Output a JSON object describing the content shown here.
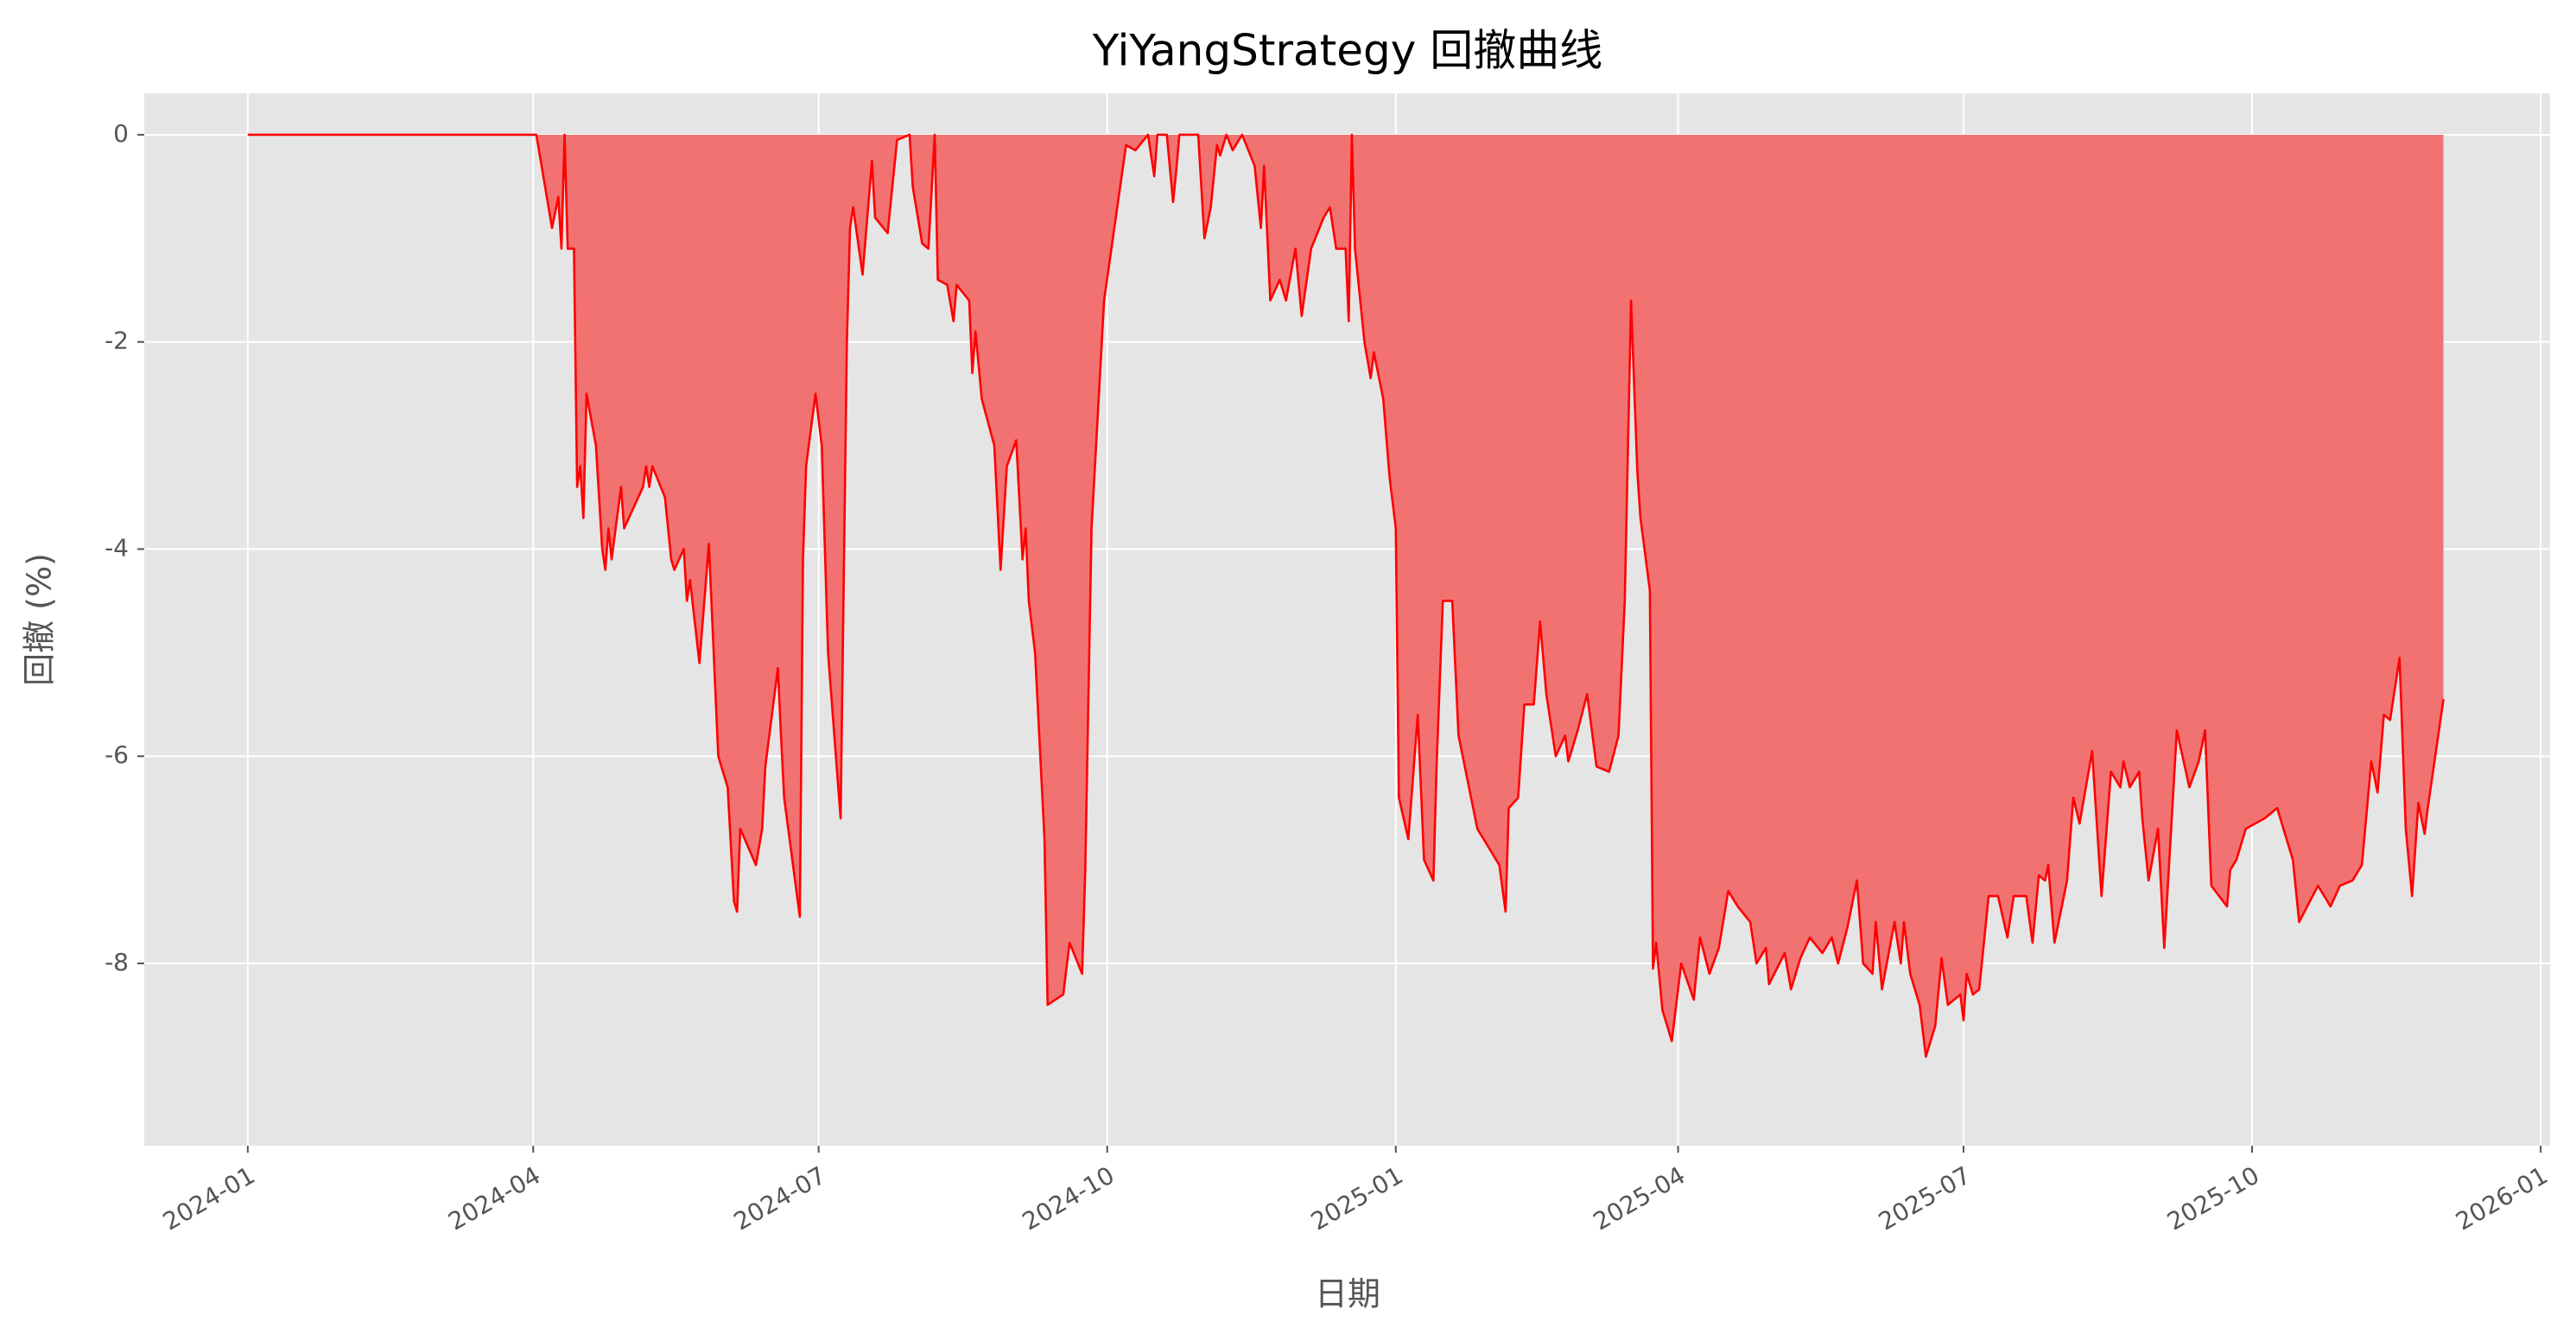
{
  "chart_data": {
    "type": "area",
    "title": "YiYangStrategy 回撤曲线",
    "x_label": "日期",
    "y_label": "回撤 (%)",
    "color": "#ff0000",
    "fill_color": "#f27272",
    "grid": true,
    "xlim": [
      "2023-11-29",
      "2026-01-04"
    ],
    "xticks": [
      {
        "value": "2024-01-01",
        "label": "2024-01"
      },
      {
        "value": "2024-04-01",
        "label": "2024-04"
      },
      {
        "value": "2024-07-01",
        "label": "2024-07"
      },
      {
        "value": "2024-10-01",
        "label": "2024-10"
      },
      {
        "value": "2025-01-01",
        "label": "2025-01"
      },
      {
        "value": "2025-04-01",
        "label": "2025-04"
      },
      {
        "value": "2025-07-01",
        "label": "2025-07"
      },
      {
        "value": "2025-10-01",
        "label": "2025-10"
      },
      {
        "value": "2026-01-01",
        "label": "2026-01"
      }
    ],
    "ylim": [
      -9.76,
      0.4
    ],
    "yticks": [
      0,
      -2,
      -4,
      -6,
      -8
    ],
    "x": [
      "2024-01-01",
      "2024-04-02",
      "2024-04-07",
      "2024-04-09",
      "2024-04-10",
      "2024-04-11",
      "2024-04-12",
      "2024-04-14",
      "2024-04-15",
      "2024-04-16",
      "2024-04-17",
      "2024-04-18",
      "2024-04-21",
      "2024-04-23",
      "2024-04-24",
      "2024-04-25",
      "2024-04-26",
      "2024-04-29",
      "2024-04-30",
      "2024-05-06",
      "2024-05-07",
      "2024-05-08",
      "2024-05-09",
      "2024-05-13",
      "2024-05-15",
      "2024-05-16",
      "2024-05-19",
      "2024-05-20",
      "2024-05-21",
      "2024-05-24",
      "2024-05-27",
      "2024-05-30",
      "2024-06-02",
      "2024-06-04",
      "2024-06-05",
      "2024-06-06",
      "2024-06-11",
      "2024-06-13",
      "2024-06-14",
      "2024-06-18",
      "2024-06-19",
      "2024-06-20",
      "2024-06-25",
      "2024-06-26",
      "2024-06-27",
      "2024-06-30",
      "2024-07-02",
      "2024-07-04",
      "2024-07-08",
      "2024-07-10",
      "2024-07-11",
      "2024-07-12",
      "2024-07-15",
      "2024-07-18",
      "2024-07-19",
      "2024-07-23",
      "2024-07-26",
      "2024-07-30",
      "2024-07-31",
      "2024-08-03",
      "2024-08-05",
      "2024-08-07",
      "2024-08-08",
      "2024-08-11",
      "2024-08-13",
      "2024-08-14",
      "2024-08-18",
      "2024-08-19",
      "2024-08-20",
      "2024-08-22",
      "2024-08-26",
      "2024-08-28",
      "2024-08-30",
      "2024-09-02",
      "2024-09-04",
      "2024-09-05",
      "2024-09-06",
      "2024-09-08",
      "2024-09-11",
      "2024-09-12",
      "2024-09-17",
      "2024-09-19",
      "2024-09-23",
      "2024-09-24",
      "2024-09-26",
      "2024-09-30",
      "2024-10-07",
      "2024-10-10",
      "2024-10-14",
      "2024-10-16",
      "2024-10-17",
      "2024-10-20",
      "2024-10-22",
      "2024-10-23",
      "2024-10-24",
      "2024-10-30",
      "2024-11-01",
      "2024-11-03",
      "2024-11-05",
      "2024-11-06",
      "2024-11-08",
      "2024-11-10",
      "2024-11-13",
      "2024-11-15",
      "2024-11-17",
      "2024-11-19",
      "2024-11-20",
      "2024-11-22",
      "2024-11-25",
      "2024-11-27",
      "2024-11-30",
      "2024-12-02",
      "2024-12-05",
      "2024-12-09",
      "2024-12-11",
      "2024-12-13",
      "2024-12-16",
      "2024-12-17",
      "2024-12-18",
      "2024-12-19",
      "2024-12-22",
      "2024-12-24",
      "2024-12-25",
      "2024-12-28",
      "2024-12-30",
      "2025-01-01",
      "2025-01-02",
      "2025-01-05",
      "2025-01-08",
      "2025-01-10",
      "2025-01-13",
      "2025-01-14",
      "2025-01-16",
      "2025-01-19",
      "2025-01-21",
      "2025-01-27",
      "2025-02-03",
      "2025-02-05",
      "2025-02-06",
      "2025-02-09",
      "2025-02-11",
      "2025-02-14",
      "2025-02-16",
      "2025-02-18",
      "2025-02-21",
      "2025-02-24",
      "2025-02-25",
      "2025-02-28",
      "2025-03-03",
      "2025-03-06",
      "2025-03-10",
      "2025-03-13",
      "2025-03-15",
      "2025-03-17",
      "2025-03-19",
      "2025-03-20",
      "2025-03-23",
      "2025-03-24",
      "2025-03-25",
      "2025-03-27",
      "2025-03-30",
      "2025-04-02",
      "2025-04-06",
      "2025-04-08",
      "2025-04-11",
      "2025-04-14",
      "2025-04-17",
      "2025-04-20",
      "2025-04-24",
      "2025-04-26",
      "2025-04-29",
      "2025-04-30",
      "2025-05-05",
      "2025-05-07",
      "2025-05-10",
      "2025-05-13",
      "2025-05-17",
      "2025-05-20",
      "2025-05-22",
      "2025-05-25",
      "2025-05-28",
      "2025-05-30",
      "2025-06-02",
      "2025-06-03",
      "2025-06-05",
      "2025-06-09",
      "2025-06-11",
      "2025-06-12",
      "2025-06-14",
      "2025-06-17",
      "2025-06-19",
      "2025-06-22",
      "2025-06-24",
      "2025-06-26",
      "2025-06-30",
      "2025-07-01",
      "2025-07-02",
      "2025-07-04",
      "2025-07-06",
      "2025-07-09",
      "2025-07-12",
      "2025-07-15",
      "2025-07-17",
      "2025-07-21",
      "2025-07-23",
      "2025-07-25",
      "2025-07-27",
      "2025-07-28",
      "2025-07-30",
      "2025-08-03",
      "2025-08-05",
      "2025-08-07",
      "2025-08-11",
      "2025-08-14",
      "2025-08-17",
      "2025-08-20",
      "2025-08-21",
      "2025-08-23",
      "2025-08-26",
      "2025-08-27",
      "2025-08-29",
      "2025-09-01",
      "2025-09-03",
      "2025-09-05",
      "2025-09-07",
      "2025-09-11",
      "2025-09-14",
      "2025-09-16",
      "2025-09-18",
      "2025-09-23",
      "2025-09-24",
      "2025-09-26",
      "2025-09-29",
      "2025-10-05",
      "2025-10-09",
      "2025-10-14",
      "2025-10-16",
      "2025-10-22",
      "2025-10-26",
      "2025-10-29",
      "2025-11-02",
      "2025-11-05",
      "2025-11-08",
      "2025-11-10",
      "2025-11-12",
      "2025-11-14",
      "2025-11-17",
      "2025-11-19",
      "2025-11-21",
      "2025-11-23",
      "2025-11-25",
      "2025-11-26",
      "2025-12-01"
    ],
    "values": [
      0,
      0,
      -0.9,
      -0.6,
      -1.1,
      0,
      -1.1,
      -1.1,
      -3.4,
      -3.2,
      -3.7,
      -2.5,
      -3.0,
      -4.0,
      -4.2,
      -3.8,
      -4.1,
      -3.4,
      -3.8,
      -3.4,
      -3.2,
      -3.4,
      -3.2,
      -3.5,
      -4.1,
      -4.2,
      -4.0,
      -4.5,
      -4.3,
      -5.1,
      -3.95,
      -6.0,
      -6.3,
      -7.4,
      -7.5,
      -6.7,
      -7.05,
      -6.7,
      -6.1,
      -5.15,
      -5.8,
      -6.4,
      -7.55,
      -4.1,
      -3.2,
      -2.5,
      -3.0,
      -5.0,
      -6.6,
      -2.0,
      -0.9,
      -0.7,
      -1.35,
      -0.25,
      -0.8,
      -0.95,
      -0.05,
      0,
      -0.5,
      -1.05,
      -1.1,
      0,
      -1.4,
      -1.45,
      -1.8,
      -1.45,
      -1.6,
      -2.3,
      -1.9,
      -2.55,
      -3.0,
      -4.2,
      -3.2,
      -2.95,
      -4.1,
      -3.8,
      -4.5,
      -5.0,
      -6.8,
      -8.4,
      -8.3,
      -7.8,
      -8.1,
      -7.1,
      -3.8,
      -1.6,
      -0.1,
      -0.15,
      0,
      -0.4,
      0,
      0,
      -0.65,
      -0.35,
      0,
      0,
      -1.0,
      -0.7,
      -0.1,
      -0.2,
      0,
      -0.15,
      0,
      -0.15,
      -0.3,
      -0.9,
      -0.3,
      -1.6,
      -1.4,
      -1.6,
      -1.1,
      -1.75,
      -1.1,
      -0.8,
      -0.7,
      -1.1,
      -1.1,
      -1.8,
      0,
      -1.1,
      -2.0,
      -2.35,
      -2.1,
      -2.55,
      -3.3,
      -3.8,
      -6.4,
      -6.8,
      -5.6,
      -7.0,
      -7.2,
      -6.1,
      -4.5,
      -4.5,
      -5.8,
      -6.7,
      -7.05,
      -7.5,
      -6.5,
      -6.4,
      -5.5,
      -5.5,
      -4.7,
      -5.4,
      -6.0,
      -5.8,
      -6.05,
      -5.75,
      -5.4,
      -6.1,
      -6.15,
      -5.8,
      -4.5,
      -1.6,
      -3.25,
      -3.7,
      -4.4,
      -8.05,
      -7.8,
      -8.45,
      -8.75,
      -8.0,
      -8.35,
      -7.75,
      -8.1,
      -7.85,
      -7.3,
      -7.45,
      -7.6,
      -8.0,
      -7.85,
      -8.2,
      -7.9,
      -8.25,
      -7.95,
      -7.75,
      -7.9,
      -7.75,
      -8.0,
      -7.65,
      -7.2,
      -8.0,
      -8.1,
      -7.6,
      -8.25,
      -7.6,
      -8.0,
      -7.6,
      -8.1,
      -8.4,
      -8.9,
      -8.6,
      -7.95,
      -8.4,
      -8.3,
      -8.55,
      -8.1,
      -8.3,
      -8.25,
      -7.35,
      -7.35,
      -7.75,
      -7.35,
      -7.35,
      -7.8,
      -7.15,
      -7.2,
      -7.05,
      -7.8,
      -7.2,
      -6.4,
      -6.65,
      -5.95,
      -7.35,
      -6.15,
      -6.3,
      -6.05,
      -6.3,
      -6.15,
      -6.6,
      -7.2,
      -6.7,
      -7.85,
      -6.8,
      -5.75,
      -6.3,
      -6.05,
      -5.75,
      -7.25,
      -7.45,
      -7.1,
      -7.0,
      -6.7,
      -6.6,
      -6.5,
      -7.0,
      -7.6,
      -7.25,
      -7.45,
      -7.25,
      -7.2,
      -7.05,
      -6.05,
      -6.35,
      -5.6,
      -5.65,
      -5.05,
      -6.7,
      -7.35,
      -6.45,
      -6.75,
      -6.5,
      -5.45
    ]
  }
}
